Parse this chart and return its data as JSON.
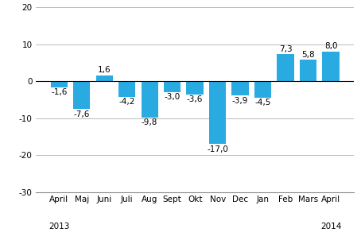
{
  "categories": [
    "April",
    "Maj",
    "Juni",
    "Juli",
    "Aug",
    "Sept",
    "Okt",
    "Nov",
    "Dec",
    "Jan",
    "Feb",
    "Mars",
    "April"
  ],
  "values": [
    -1.6,
    -7.6,
    1.6,
    -4.2,
    -9.8,
    -3.0,
    -3.6,
    -17.0,
    -3.9,
    -4.5,
    7.3,
    5.8,
    8.0
  ],
  "bar_color": "#29ABE2",
  "ylim": [
    -30,
    20
  ],
  "yticks": [
    -30,
    -20,
    -10,
    0,
    10,
    20
  ],
  "background_color": "#ffffff",
  "grid_color": "#b0b0b0",
  "value_fontsize": 7.5,
  "tick_fontsize": 7.5,
  "year_2013_idx": 0,
  "year_2014_idx": 12,
  "bar_width": 0.75
}
